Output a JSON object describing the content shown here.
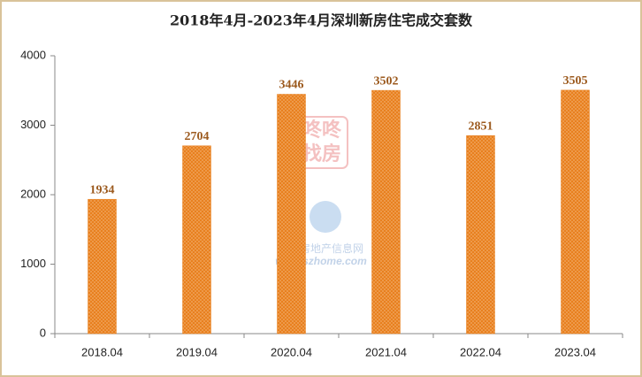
{
  "chart_data": {
    "type": "bar",
    "title": "2018年4月-2023年4月深圳新房住宅成交套数",
    "categories": [
      "2018.04",
      "2019.04",
      "2020.04",
      "2021.04",
      "2022.04",
      "2023.04"
    ],
    "values": [
      1934,
      2704,
      3446,
      3502,
      2851,
      3505
    ],
    "color": "#e8801f",
    "ylim": [
      0,
      4000
    ],
    "yticks": [
      0,
      1000,
      2000,
      3000,
      4000
    ],
    "grid": false
  },
  "watermark": {
    "line1": "咚咚",
    "line2": "找房",
    "site": "深圳房地产信息网",
    "url": "www.szhome.com"
  }
}
